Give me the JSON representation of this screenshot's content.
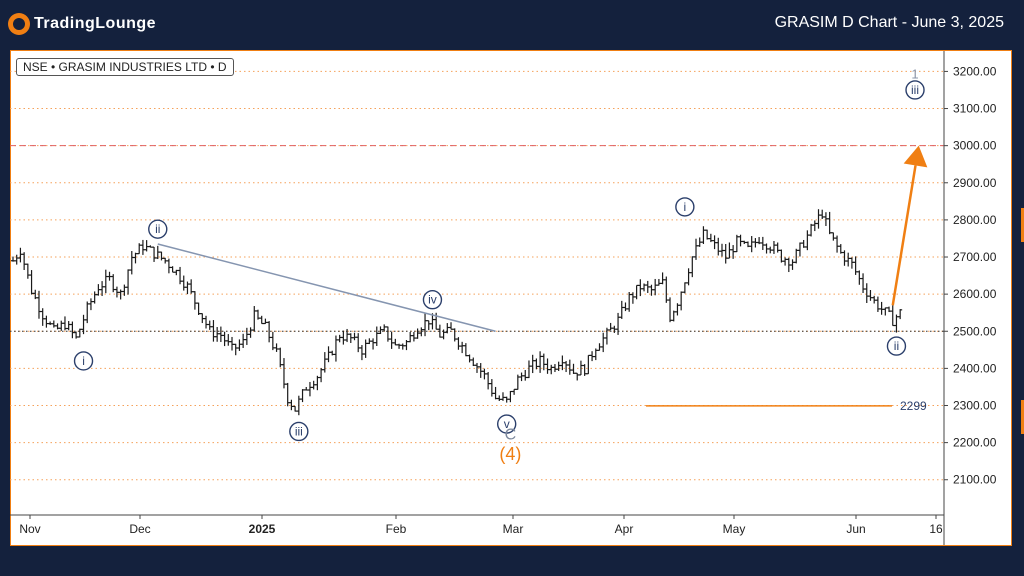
{
  "header": {
    "logo_text": "TradingLounge",
    "title": "GRASIM D Chart - June 3, 2025"
  },
  "symbol_label": "NSE • GRASIM INDUSTRIES LTD • D",
  "colors": {
    "background": "#14213d",
    "accent": "#f07f13",
    "wave_label": "#2b3f6b",
    "candles": "#1a1a1a",
    "grid": "#f5a15a",
    "resistance": "#e06060"
  },
  "chart_data": {
    "type": "ohlc",
    "timeframe": "D",
    "y_axis": {
      "ticks": [
        2100,
        2200,
        2300,
        2400,
        2500,
        2600,
        2700,
        2800,
        2900,
        3000,
        3100,
        3200
      ],
      "tick_labels": [
        "2100.00",
        "2200.00",
        "2300.00",
        "2400.00",
        "2500.00",
        "2600.00",
        "2700.00",
        "2800.00",
        "2900.00",
        "3000.00",
        "3100.00",
        "3200.00"
      ],
      "ylim": [
        2005,
        3255
      ]
    },
    "x_axis": {
      "ticks": [
        "Nov",
        "Dec",
        "2025",
        "Feb",
        "Mar",
        "Apr",
        "May",
        "Jun",
        "16"
      ],
      "tick_bold": [
        false,
        false,
        true,
        false,
        false,
        false,
        false,
        false,
        false
      ]
    },
    "price_path": [
      [
        0,
        2690
      ],
      [
        2,
        2720
      ],
      [
        5,
        2610
      ],
      [
        8,
        2545
      ],
      [
        11,
        2500
      ],
      [
        14,
        2520
      ],
      [
        17,
        2480
      ],
      [
        20,
        2560
      ],
      [
        23,
        2620
      ],
      [
        26,
        2640
      ],
      [
        29,
        2600
      ],
      [
        32,
        2700
      ],
      [
        35,
        2730
      ],
      [
        38,
        2710
      ],
      [
        41,
        2690
      ],
      [
        44,
        2660
      ],
      [
        47,
        2620
      ],
      [
        50,
        2560
      ],
      [
        53,
        2500
      ],
      [
        56,
        2490
      ],
      [
        59,
        2450
      ],
      [
        62,
        2470
      ],
      [
        65,
        2540
      ],
      [
        68,
        2510
      ],
      [
        71,
        2440
      ],
      [
        74,
        2320
      ],
      [
        76,
        2290
      ],
      [
        79,
        2350
      ],
      [
        82,
        2380
      ],
      [
        85,
        2430
      ],
      [
        88,
        2490
      ],
      [
        91,
        2480
      ],
      [
        94,
        2450
      ],
      [
        97,
        2480
      ],
      [
        100,
        2500
      ],
      [
        103,
        2460
      ],
      [
        106,
        2470
      ],
      [
        109,
        2510
      ],
      [
        112,
        2530
      ],
      [
        115,
        2490
      ],
      [
        118,
        2500
      ],
      [
        121,
        2460
      ],
      [
        124,
        2420
      ],
      [
        127,
        2380
      ],
      [
        130,
        2320
      ],
      [
        133,
        2310
      ],
      [
        136,
        2370
      ],
      [
        139,
        2400
      ],
      [
        142,
        2420
      ],
      [
        145,
        2400
      ],
      [
        148,
        2430
      ],
      [
        151,
        2390
      ],
      [
        154,
        2400
      ],
      [
        157,
        2460
      ],
      [
        160,
        2490
      ],
      [
        163,
        2530
      ],
      [
        166,
        2590
      ],
      [
        169,
        2620
      ],
      [
        172,
        2610
      ],
      [
        175,
        2630
      ],
      [
        177,
        2540
      ],
      [
        179,
        2580
      ],
      [
        181,
        2640
      ],
      [
        183,
        2700
      ],
      [
        186,
        2760
      ],
      [
        189,
        2730
      ],
      [
        192,
        2700
      ],
      [
        195,
        2740
      ],
      [
        198,
        2720
      ],
      [
        201,
        2750
      ],
      [
        204,
        2730
      ],
      [
        207,
        2700
      ],
      [
        210,
        2690
      ],
      [
        213,
        2740
      ],
      [
        216,
        2790
      ],
      [
        218,
        2820
      ],
      [
        220,
        2760
      ],
      [
        223,
        2710
      ],
      [
        226,
        2680
      ],
      [
        229,
        2620
      ],
      [
        232,
        2580
      ],
      [
        235,
        2550
      ],
      [
        237,
        2530
      ],
      [
        239,
        2550
      ]
    ],
    "ohlc_noise_note": "",
    "horizontal_levels": [
      {
        "price": 3000,
        "style": "dashed",
        "color": "#e06060"
      },
      {
        "price": 2299,
        "style": "solid",
        "color": "#f07f13",
        "label": "2299"
      },
      {
        "price": 2500,
        "style": "dotted",
        "color": "#333333"
      }
    ],
    "trendline": {
      "from": [
        39,
        2735
      ],
      "to": [
        130,
        2500
      ]
    },
    "projection_arrow": {
      "from": [
        237,
        2570
      ],
      "to": [
        244,
        3000
      ]
    },
    "wave_labels": [
      {
        "text": "i",
        "bar": 19,
        "price": 2420,
        "style": "circle"
      },
      {
        "text": "ii",
        "bar": 39,
        "price": 2775,
        "style": "circle"
      },
      {
        "text": "iii",
        "bar": 77,
        "price": 2230,
        "style": "circle"
      },
      {
        "text": "iv",
        "bar": 113,
        "price": 2585,
        "style": "circle"
      },
      {
        "text": "v",
        "bar": 133,
        "price": 2250,
        "style": "circle"
      },
      {
        "text": "C",
        "bar": 134,
        "price": 2225,
        "style": "plain"
      },
      {
        "text": "(4)",
        "bar": 134,
        "price": 2170,
        "style": "orange"
      },
      {
        "text": "i",
        "bar": 181,
        "price": 2835,
        "style": "circle"
      },
      {
        "text": "ii",
        "bar": 238,
        "price": 2460,
        "style": "circle"
      },
      {
        "text": "iii",
        "bar": 243,
        "price": 3150,
        "style": "circle"
      },
      {
        "text": "1",
        "bar": 243,
        "price": 3195,
        "style": "plain-small"
      }
    ]
  }
}
